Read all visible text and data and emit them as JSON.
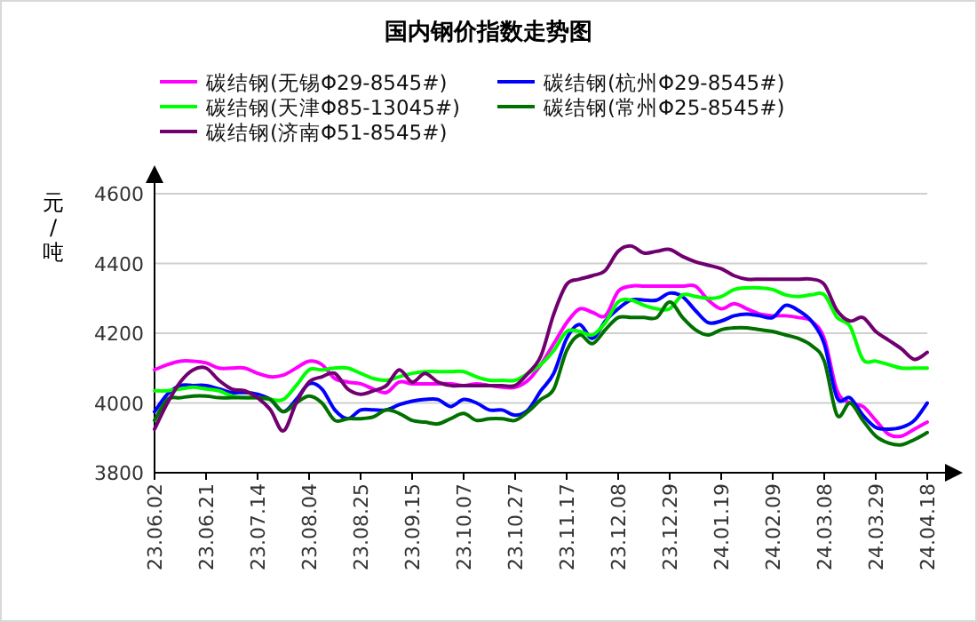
{
  "chart_data": {
    "type": "line",
    "title": "国内钢价指数走势图",
    "ylabel": "元/吨",
    "categories": [
      "23.06.02",
      null,
      null,
      null,
      "23.06.21",
      null,
      null,
      null,
      "23.07.14",
      null,
      null,
      null,
      "23.08.04",
      null,
      null,
      null,
      "23.08.25",
      null,
      null,
      null,
      "23.09.15",
      null,
      null,
      null,
      "23.10.07",
      null,
      null,
      null,
      "23.10.27",
      null,
      null,
      null,
      "23.11.17",
      null,
      null,
      null,
      "23.12.08",
      null,
      null,
      null,
      "23.12.29",
      null,
      null,
      null,
      "24.01.19",
      null,
      null,
      null,
      "24.02.09",
      null,
      null,
      null,
      "24.03.08",
      null,
      null,
      null,
      "24.03.29",
      null,
      null,
      null,
      "24.04.18"
    ],
    "series": [
      {
        "name": "碳结钢(无锡Φ29-8545#)",
        "color": "#ff00ff",
        "values": [
          4095,
          4110,
          4120,
          4120,
          4115,
          4100,
          4100,
          4100,
          4085,
          4075,
          4080,
          4100,
          4120,
          4110,
          4070,
          4060,
          4055,
          4040,
          4030,
          4060,
          4055,
          4055,
          4055,
          4055,
          4050,
          4055,
          4050,
          4045,
          4045,
          4065,
          4110,
          4170,
          4230,
          4270,
          4260,
          4250,
          4320,
          4335,
          4335,
          4335,
          4335,
          4335,
          4335,
          4295,
          4270,
          4285,
          4270,
          4255,
          4250,
          4250,
          4245,
          4235,
          4185,
          4035,
          4000,
          3990,
          3950,
          3910,
          3905,
          3925,
          3945
        ]
      },
      {
        "name": "碳结钢(杭州Φ29-8545#)",
        "color": "#0000ff",
        "values": [
          3975,
          4025,
          4050,
          4050,
          4050,
          4040,
          4030,
          4030,
          4025,
          4010,
          3975,
          4010,
          4055,
          4040,
          3980,
          3955,
          3980,
          3980,
          3980,
          3995,
          4005,
          4010,
          4010,
          3990,
          4010,
          4000,
          3980,
          3980,
          3965,
          3980,
          4035,
          4085,
          4185,
          4225,
          4185,
          4235,
          4270,
          4295,
          4295,
          4295,
          4315,
          4305,
          4265,
          4230,
          4235,
          4250,
          4255,
          4250,
          4245,
          4280,
          4265,
          4235,
          4170,
          4015,
          4015,
          3965,
          3930,
          3925,
          3930,
          3950,
          4000
        ]
      },
      {
        "name": "碳结钢(天津Φ85-13045#)",
        "color": "#00ff00",
        "values": [
          4035,
          4035,
          4040,
          4045,
          4040,
          4035,
          4020,
          4015,
          4015,
          4010,
          4010,
          4050,
          4095,
          4095,
          4100,
          4100,
          4085,
          4070,
          4065,
          4075,
          4085,
          4090,
          4090,
          4090,
          4090,
          4075,
          4065,
          4065,
          4065,
          4085,
          4110,
          4150,
          4205,
          4205,
          4195,
          4230,
          4290,
          4295,
          4280,
          4270,
          4270,
          4310,
          4305,
          4300,
          4305,
          4325,
          4330,
          4330,
          4325,
          4310,
          4305,
          4310,
          4310,
          4245,
          4220,
          4125,
          4120,
          4110,
          4100,
          4100,
          4100
        ]
      },
      {
        "name": "碳结钢(常州Φ25-8545#)",
        "color": "#007000",
        "values": [
          3950,
          4010,
          4015,
          4020,
          4020,
          4015,
          4015,
          4015,
          4015,
          4010,
          3975,
          4000,
          4020,
          4000,
          3950,
          3955,
          3955,
          3960,
          3980,
          3970,
          3950,
          3945,
          3940,
          3955,
          3970,
          3950,
          3955,
          3955,
          3950,
          3975,
          4010,
          4040,
          4150,
          4195,
          4170,
          4210,
          4245,
          4245,
          4245,
          4245,
          4290,
          4245,
          4210,
          4195,
          4210,
          4215,
          4215,
          4210,
          4205,
          4195,
          4185,
          4165,
          4120,
          3965,
          4000,
          3950,
          3905,
          3885,
          3880,
          3895,
          3915
        ]
      },
      {
        "name": "碳结钢(济南Φ51-8545#)",
        "color": "#700070",
        "values": [
          3925,
          4000,
          4060,
          4095,
          4100,
          4065,
          4040,
          4035,
          4015,
          3980,
          3920,
          4000,
          4060,
          4075,
          4085,
          4040,
          4025,
          4035,
          4050,
          4095,
          4060,
          4085,
          4060,
          4050,
          4050,
          4050,
          4050,
          4050,
          4050,
          4085,
          4135,
          4255,
          4340,
          4355,
          4365,
          4380,
          4435,
          4450,
          4430,
          4435,
          4440,
          4420,
          4405,
          4395,
          4385,
          4365,
          4355,
          4355,
          4355,
          4355,
          4355,
          4355,
          4340,
          4265,
          4235,
          4245,
          4205,
          4180,
          4155,
          4125,
          4145
        ]
      }
    ],
    "ylim": [
      3800,
      4600
    ],
    "yticks": [
      3800,
      4000,
      4200,
      4400,
      4600
    ],
    "grid": "y",
    "legend": "top"
  }
}
